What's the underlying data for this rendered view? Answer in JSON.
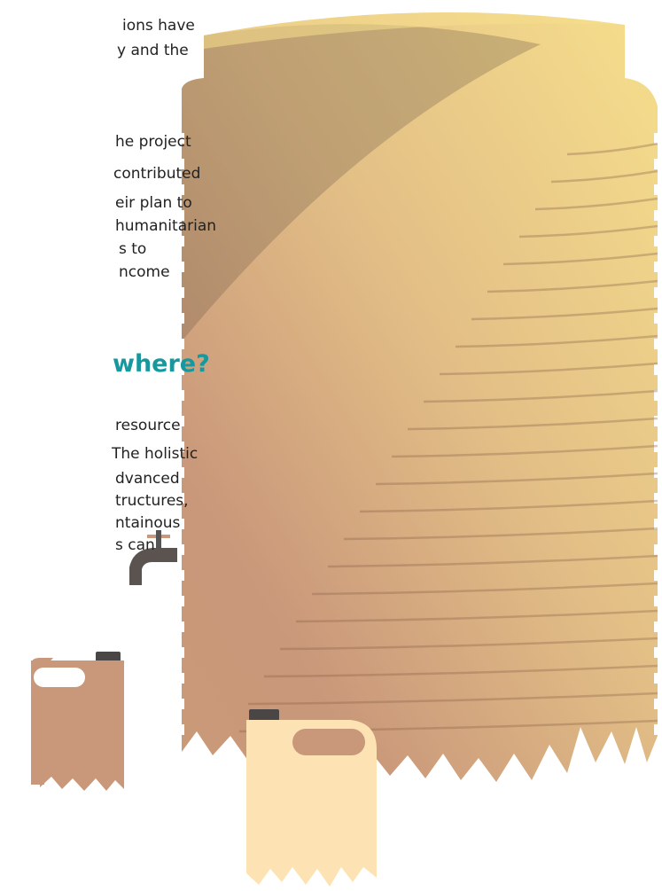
{
  "paragraph_1": [
    "ions have",
    "y and the"
  ],
  "paragraph_2": [
    "he project",
    "contributed",
    "eir plan to",
    "humanitarian",
    "s to",
    "ncome"
  ],
  "heading": "where?",
  "paragraph_3": [
    "resource",
    "The holistic",
    "dvanced",
    "tructures,",
    "ntainous",
    "s can"
  ]
}
